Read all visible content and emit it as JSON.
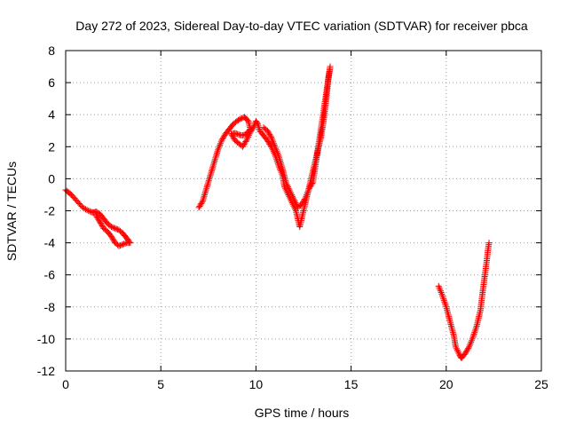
{
  "chart_data": {
    "type": "scatter",
    "title": "Day 272 of 2023, Sidereal Day-to-day VTEC variation (SDTVAR) for receiver pbca",
    "xlabel": "GPS time / hours",
    "ylabel": "SDTVAR / TECUs",
    "xlim": [
      0,
      25
    ],
    "ylim": [
      -12,
      8
    ],
    "xticks": [
      0,
      5,
      10,
      15,
      20,
      25
    ],
    "xtick_labels": [
      "0",
      "5",
      "10",
      "15",
      "20",
      "25"
    ],
    "yticks": [
      -12,
      -10,
      -8,
      -6,
      -4,
      -2,
      0,
      2,
      4,
      6,
      8
    ],
    "ytick_labels": [
      "-12",
      "-10",
      "-8",
      "-6",
      "-4",
      "-2",
      "0",
      "2",
      "4",
      "6",
      "8"
    ],
    "grid": true,
    "marker": "+",
    "color": "#ff0000",
    "series": [
      {
        "name": "segment-1",
        "points": [
          [
            0.0,
            -0.7
          ],
          [
            0.3,
            -1.0
          ],
          [
            0.6,
            -1.4
          ],
          [
            0.9,
            -1.8
          ],
          [
            1.2,
            -2.0
          ],
          [
            1.4,
            -2.1
          ],
          [
            1.5,
            -2.1
          ],
          [
            1.6,
            -2.05
          ],
          [
            1.8,
            -2.2
          ],
          [
            2.0,
            -2.5
          ],
          [
            2.2,
            -2.8
          ],
          [
            2.4,
            -3.0
          ],
          [
            2.6,
            -3.1
          ],
          [
            2.8,
            -3.2
          ],
          [
            3.0,
            -3.4
          ],
          [
            3.2,
            -3.7
          ],
          [
            3.4,
            -4.0
          ],
          [
            3.2,
            -4.0
          ],
          [
            3.0,
            -4.1
          ],
          [
            2.8,
            -4.2
          ],
          [
            2.6,
            -4.0
          ],
          [
            2.4,
            -3.6
          ],
          [
            2.2,
            -3.3
          ],
          [
            2.0,
            -3.1
          ],
          [
            1.8,
            -2.7
          ],
          [
            1.6,
            -2.3
          ]
        ]
      },
      {
        "name": "segment-2",
        "points": [
          [
            7.0,
            -1.8
          ],
          [
            7.2,
            -1.4
          ],
          [
            7.4,
            -0.6
          ],
          [
            7.6,
            0.2
          ],
          [
            7.8,
            1.0
          ],
          [
            8.0,
            1.8
          ],
          [
            8.2,
            2.4
          ],
          [
            8.4,
            2.8
          ],
          [
            8.6,
            3.1
          ],
          [
            8.8,
            3.4
          ],
          [
            9.0,
            3.6
          ],
          [
            9.2,
            3.75
          ],
          [
            9.4,
            3.85
          ],
          [
            9.6,
            3.6
          ],
          [
            9.7,
            3.1
          ],
          [
            9.5,
            2.8
          ],
          [
            9.3,
            2.7
          ],
          [
            9.1,
            2.75
          ],
          [
            8.9,
            2.85
          ],
          [
            8.7,
            2.8
          ],
          [
            8.9,
            2.4
          ],
          [
            9.1,
            2.2
          ],
          [
            9.3,
            2.0
          ],
          [
            9.5,
            2.4
          ],
          [
            9.7,
            2.9
          ],
          [
            9.9,
            3.3
          ],
          [
            10.0,
            3.6
          ],
          [
            10.1,
            3.4
          ],
          [
            10.2,
            3.0
          ],
          [
            10.4,
            2.7
          ],
          [
            10.6,
            2.4
          ],
          [
            10.8,
            2.0
          ],
          [
            11.0,
            1.5
          ],
          [
            11.2,
            0.8
          ],
          [
            11.4,
            0.2
          ],
          [
            11.5,
            -0.5
          ],
          [
            11.7,
            -1.0
          ],
          [
            11.9,
            -1.5
          ],
          [
            12.1,
            -2.0
          ],
          [
            12.2,
            -2.5
          ],
          [
            12.3,
            -3.0
          ],
          [
            12.4,
            -2.5
          ],
          [
            12.5,
            -2.0
          ],
          [
            12.6,
            -1.5
          ],
          [
            12.7,
            -1.0
          ],
          [
            12.8,
            -0.5
          ],
          [
            12.9,
            0.0
          ],
          [
            13.0,
            0.5
          ],
          [
            13.1,
            1.0
          ],
          [
            13.2,
            1.5
          ],
          [
            13.3,
            2.0
          ],
          [
            13.4,
            2.5
          ],
          [
            13.5,
            3.2
          ],
          [
            13.6,
            4.0
          ],
          [
            13.7,
            5.0
          ],
          [
            13.8,
            6.2
          ],
          [
            13.9,
            7.0
          ],
          [
            13.0,
            -0.2
          ],
          [
            12.8,
            -0.6
          ],
          [
            12.6,
            -1.2
          ],
          [
            12.4,
            -1.6
          ],
          [
            12.2,
            -1.8
          ],
          [
            12.0,
            -1.3
          ],
          [
            11.8,
            -0.8
          ],
          [
            11.6,
            -0.3
          ],
          [
            11.4,
            0.6
          ],
          [
            11.2,
            1.4
          ],
          [
            11.0,
            2.0
          ],
          [
            10.8,
            2.6
          ],
          [
            10.6,
            3.0
          ],
          [
            10.4,
            3.2
          ]
        ]
      },
      {
        "name": "segment-3",
        "points": [
          [
            19.6,
            -6.7
          ],
          [
            19.8,
            -7.3
          ],
          [
            20.0,
            -8.0
          ],
          [
            20.2,
            -8.9
          ],
          [
            20.4,
            -9.8
          ],
          [
            20.5,
            -10.5
          ],
          [
            20.7,
            -11.0
          ],
          [
            20.8,
            -11.2
          ],
          [
            21.0,
            -10.9
          ],
          [
            21.2,
            -10.5
          ],
          [
            21.4,
            -9.9
          ],
          [
            21.6,
            -9.2
          ],
          [
            21.8,
            -8.2
          ],
          [
            21.9,
            -7.2
          ],
          [
            22.0,
            -6.3
          ],
          [
            22.1,
            -5.4
          ],
          [
            22.2,
            -4.4
          ],
          [
            22.25,
            -4.0
          ]
        ]
      }
    ]
  }
}
